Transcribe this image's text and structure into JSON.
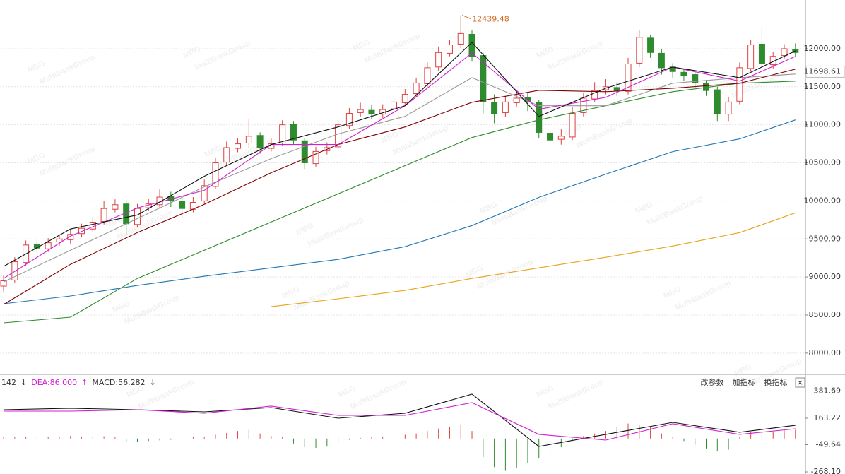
{
  "chart_data": [
    {
      "type": "candlestick",
      "open": [
        8880,
        8960,
        9190,
        9430,
        9370,
        9460,
        9490,
        9570,
        9630,
        9730,
        9890,
        9960,
        9690,
        9910,
        9950,
        10060,
        9990,
        9890,
        10000,
        10190,
        10510,
        10690,
        10760,
        10860,
        10690,
        10760,
        11010,
        10790,
        10490,
        10660,
        10710,
        10990,
        11160,
        11190,
        11140,
        11210,
        11290,
        11410,
        11540,
        11760,
        11940,
        12060,
        12190,
        11910,
        11290,
        11160,
        11290,
        11360,
        11290,
        10890,
        10810,
        10840,
        11160,
        11340,
        11460,
        11490,
        11440,
        11810,
        12140,
        11940,
        11760,
        11690,
        11660,
        11540,
        11460,
        11140,
        11310,
        11740,
        12060,
        11790,
        11910,
        11990
      ],
      "high": [
        9020,
        9260,
        9480,
        9490,
        9510,
        9560,
        9620,
        9700,
        9780,
        10000,
        10020,
        10010,
        9960,
        10030,
        10150,
        10120,
        10060,
        10050,
        10280,
        10570,
        10780,
        10820,
        11080,
        10900,
        10830,
        11060,
        11050,
        10830,
        10710,
        10770,
        11080,
        11220,
        11290,
        11260,
        11270,
        11380,
        11470,
        11620,
        11820,
        12030,
        12120,
        12439.48,
        12240,
        11950,
        11400,
        11380,
        11460,
        11430,
        11330,
        10960,
        10950,
        11230,
        11420,
        11560,
        11600,
        11560,
        11880,
        12250,
        12180,
        11990,
        11810,
        11740,
        11700,
        11590,
        11500,
        11370,
        11820,
        12120,
        12290,
        11960,
        12060,
        12070
      ],
      "low": [
        8810,
        8920,
        9150,
        9320,
        9330,
        9410,
        9440,
        9520,
        9590,
        9690,
        9850,
        9560,
        9650,
        9870,
        9900,
        9920,
        9780,
        9850,
        9960,
        10160,
        10470,
        10640,
        10700,
        10620,
        10650,
        10720,
        10740,
        10420,
        10450,
        10610,
        10680,
        10950,
        11100,
        11080,
        11090,
        11170,
        11250,
        11370,
        11500,
        11710,
        11900,
        12010,
        11830,
        11150,
        11020,
        11100,
        11240,
        11180,
        10830,
        10700,
        10740,
        10800,
        11110,
        11300,
        11400,
        11380,
        11400,
        11760,
        11880,
        11660,
        11620,
        11580,
        11470,
        11380,
        11050,
        11050,
        11270,
        11700,
        11730,
        11740,
        11860,
        11900
      ],
      "close": [
        8950,
        9200,
        9420,
        9380,
        9450,
        9500,
        9560,
        9640,
        9720,
        9900,
        9950,
        9700,
        9900,
        9960,
        10050,
        10000,
        9900,
        9980,
        10200,
        10500,
        10700,
        10750,
        10850,
        10700,
        10750,
        11000,
        10800,
        10500,
        10650,
        10700,
        11000,
        11150,
        11200,
        11150,
        11200,
        11300,
        11400,
        11550,
        11750,
        11950,
        12050,
        12200,
        11900,
        11300,
        11150,
        11300,
        11350,
        11300,
        10900,
        10800,
        10850,
        11150,
        11350,
        11450,
        11500,
        11450,
        11800,
        12150,
        11950,
        11750,
        11700,
        11650,
        11550,
        11450,
        11150,
        11300,
        11750,
        12050,
        11800,
        11900,
        12000,
        11950
      ],
      "up_color": "#e04040",
      "down_color": "#2e8b2e",
      "xlim": [
        -0.32,
        71.9
      ],
      "ylim": [
        7720,
        12640
      ],
      "yticks": [
        {
          "value": 12000,
          "label": "12000.00"
        },
        {
          "value": 11500,
          "label": "11500.00"
        },
        {
          "value": 11000,
          "label": "11000.00"
        },
        {
          "value": 10500,
          "label": "10500.00"
        },
        {
          "value": 10000,
          "label": "10000.00"
        },
        {
          "value": 9500,
          "label": "9500.00"
        },
        {
          "value": 9000,
          "label": "9000.00"
        },
        {
          "value": 8500,
          "label": "8500.00"
        },
        {
          "value": 8000,
          "label": "8000.00"
        }
      ],
      "grid": true,
      "last_price": 11698.61,
      "max_color": "#d2691e",
      "lines": [
        {
          "color": "#e8a317",
          "x": [
            24,
            30,
            36,
            42,
            48,
            54,
            60,
            66,
            71
          ],
          "values": [
            8610,
            8713,
            8824,
            8981,
            9120,
            9259,
            9407,
            9583,
            9843
          ]
        },
        {
          "color": "#1f77b4",
          "x": [
            0,
            6,
            12,
            18,
            24,
            30,
            36,
            42,
            48,
            54,
            60,
            66,
            71
          ],
          "values": [
            8648,
            8750,
            8889,
            9009,
            9120,
            9231,
            9398,
            9676,
            10046,
            10352,
            10648,
            10815,
            11065
          ]
        },
        {
          "color": "#2e8b2e",
          "x": [
            0,
            6,
            12,
            18,
            24,
            30,
            36,
            42,
            48,
            54,
            60,
            66,
            71
          ],
          "values": [
            8398,
            8472,
            8981,
            9352,
            9722,
            10093,
            10463,
            10833,
            11065,
            11250,
            11435,
            11546,
            11574
          ]
        },
        {
          "color": "#800000",
          "x": [
            0,
            6,
            12,
            18,
            24,
            30,
            36,
            42,
            48,
            54,
            60,
            66,
            71
          ],
          "values": [
            8639,
            9166,
            9583,
            9954,
            10370,
            10741,
            10972,
            11296,
            11454,
            11435,
            11481,
            11546,
            11731
          ]
        },
        {
          "color": "#999999",
          "x": [
            0,
            6,
            12,
            18,
            24,
            30,
            36,
            42,
            48,
            54,
            60,
            66,
            71
          ],
          "values": [
            8935,
            9352,
            9768,
            10185,
            10556,
            10880,
            11111,
            11620,
            11250,
            11250,
            11546,
            11620,
            11667
          ]
        },
        {
          "color": "#d020d0",
          "x": [
            0,
            6,
            12,
            18,
            24,
            30,
            36,
            42,
            48,
            54,
            60,
            66,
            71
          ],
          "values": [
            8981,
            9537,
            9907,
            10139,
            10741,
            10741,
            11250,
            11944,
            11204,
            11361,
            11759,
            11574,
            11898
          ]
        },
        {
          "color": "#111111",
          "x": [
            0,
            6,
            12,
            18,
            24,
            30,
            36,
            42,
            48,
            54,
            60,
            66,
            71
          ],
          "values": [
            9139,
            9630,
            9815,
            10324,
            10741,
            10972,
            11250,
            12083,
            11111,
            11481,
            11759,
            11620,
            11972
          ]
        }
      ]
    },
    {
      "type": "macd",
      "header": [
        {
          "text": "142",
          "color": "#333333"
        },
        {
          "text": "↓",
          "color": "#333333"
        },
        {
          "text": "DEA:86.000",
          "color": "#d020d0"
        },
        {
          "text": "↑",
          "color": "#d020d0"
        },
        {
          "text": "MACD:56.282",
          "color": "#333333"
        },
        {
          "text": "↓",
          "color": "#333333"
        }
      ],
      "values": [
        10,
        15,
        12,
        18,
        10,
        15,
        20,
        12,
        15,
        18,
        10,
        -25,
        -30,
        -20,
        -15,
        -10,
        5,
        10,
        15,
        30,
        45,
        60,
        70,
        40,
        20,
        10,
        -40,
        -70,
        -75,
        -65,
        -20,
        -10,
        5,
        10,
        15,
        20,
        30,
        40,
        60,
        80,
        95,
        110,
        60,
        -150,
        -230,
        -260,
        -240,
        -200,
        -160,
        -120,
        -70,
        -20,
        20,
        40,
        60,
        90,
        120,
        110,
        90,
        40,
        10,
        -20,
        -50,
        -80,
        -100,
        -90,
        10,
        50,
        60,
        55,
        65,
        70
      ],
      "up_color": "#e04040",
      "down_color": "#2e8b2e",
      "xlim": [
        -0.32,
        71.9
      ],
      "ylim": [
        -285,
        458
      ],
      "yticks": [
        381.69,
        163.22,
        -49.64,
        {
          "value": -268.1,
          "label": "-268.10"
        }
      ],
      "lines": [
        {
          "color": "#111111",
          "x": [
            0,
            6,
            12,
            18,
            24,
            30,
            36,
            42,
            48,
            54,
            60,
            66,
            71
          ],
          "values": [
            231,
            243,
            231,
            214,
            248,
            163,
            203,
            356,
            -64,
            33,
            129,
            50,
            106
          ]
        },
        {
          "color": "#d020d0",
          "x": [
            0,
            6,
            12,
            18,
            24,
            30,
            36,
            42,
            48,
            54,
            60,
            66,
            71
          ],
          "values": [
            220,
            220,
            231,
            203,
            260,
            186,
            186,
            288,
            33,
            -13,
            118,
            33,
            78
          ]
        }
      ]
    }
  ],
  "toolbar": {
    "buttons": [
      "改参数",
      "加指标",
      "换指标"
    ],
    "close": "×"
  },
  "watermark": {
    "logo": "MBG",
    "sub": "MultiBankGroup"
  }
}
